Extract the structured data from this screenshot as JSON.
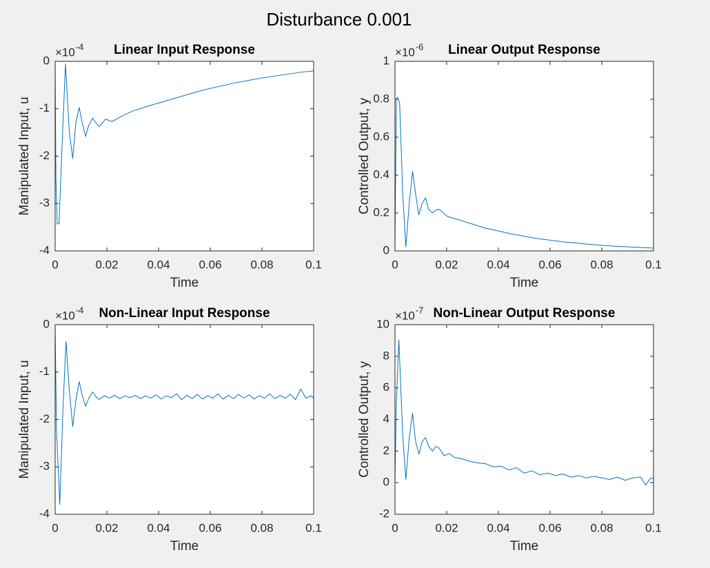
{
  "title": "Disturbance 0.001",
  "chart_data": [
    {
      "type": "line",
      "title": "Linear Input Response",
      "xlabel": "Time",
      "ylabel": "Manipulated Input, u",
      "y_multiplier": "×10",
      "y_exponent": "-4",
      "xlim": [
        0,
        0.1
      ],
      "xticks": [
        0,
        0.02,
        0.04,
        0.06,
        0.08,
        0.1
      ],
      "ylim": [
        -4,
        0
      ],
      "yticks": [
        -4,
        -3,
        -2,
        -1,
        0
      ],
      "color": "#0072bd",
      "x": [
        0,
        0.0003,
        0.0008,
        0.0015,
        0.0025,
        0.004,
        0.0055,
        0.0068,
        0.008,
        0.0093,
        0.0105,
        0.0118,
        0.013,
        0.0145,
        0.0158,
        0.017,
        0.0195,
        0.022,
        0.026,
        0.03,
        0.035,
        0.04,
        0.045,
        0.05,
        0.055,
        0.06,
        0.065,
        0.07,
        0.075,
        0.08,
        0.085,
        0.09,
        0.095,
        0.1
      ],
      "values": [
        0,
        -2.5,
        -3.43,
        -3.43,
        -2,
        -0.05,
        -1.5,
        -2.05,
        -1.3,
        -0.97,
        -1.3,
        -1.58,
        -1.35,
        -1.2,
        -1.3,
        -1.38,
        -1.22,
        -1.27,
        -1.15,
        -1.05,
        -0.96,
        -0.88,
        -0.8,
        -0.72,
        -0.64,
        -0.57,
        -0.51,
        -0.45,
        -0.4,
        -0.35,
        -0.31,
        -0.27,
        -0.23,
        -0.2
      ]
    },
    {
      "type": "line",
      "title": "Linear Output Response",
      "xlabel": "Time",
      "ylabel": "Controlled Output, y",
      "y_multiplier": "×10",
      "y_exponent": "-6",
      "xlim": [
        0,
        0.1
      ],
      "xticks": [
        0,
        0.02,
        0.04,
        0.06,
        0.08,
        0.1
      ],
      "ylim": [
        0,
        1
      ],
      "yticks": [
        0,
        0.2,
        0.4,
        0.6,
        0.8,
        1
      ],
      "color": "#0072bd",
      "x": [
        0,
        0.0005,
        0.001,
        0.0018,
        0.003,
        0.0042,
        0.0055,
        0.0068,
        0.008,
        0.0092,
        0.0105,
        0.0118,
        0.013,
        0.0145,
        0.0158,
        0.017,
        0.0205,
        0.022,
        0.028,
        0.035,
        0.045,
        0.055,
        0.065,
        0.075,
        0.085,
        0.1
      ],
      "values": [
        0,
        0.8,
        0.81,
        0.78,
        0.3,
        0.02,
        0.25,
        0.42,
        0.3,
        0.19,
        0.25,
        0.28,
        0.22,
        0.2,
        0.215,
        0.22,
        0.18,
        0.175,
        0.15,
        0.12,
        0.09,
        0.065,
        0.048,
        0.035,
        0.025,
        0.015
      ]
    },
    {
      "type": "line",
      "title": "Non-Linear Input Response",
      "xlabel": "Time",
      "ylabel": "Manipulated Input, u",
      "y_multiplier": "×10",
      "y_exponent": "-4",
      "xlim": [
        0,
        0.1
      ],
      "xticks": [
        0,
        0.02,
        0.04,
        0.06,
        0.08,
        0.1
      ],
      "ylim": [
        -4,
        0
      ],
      "yticks": [
        -4,
        -3,
        -2,
        -1,
        0
      ],
      "color": "#0072bd",
      "x": [
        0,
        0.0005,
        0.0018,
        0.003,
        0.0042,
        0.0055,
        0.0068,
        0.008,
        0.0093,
        0.0105,
        0.0118,
        0.013,
        0.0145,
        0.0158,
        0.017,
        0.019,
        0.021,
        0.023,
        0.025,
        0.027,
        0.029,
        0.031,
        0.033,
        0.035,
        0.037,
        0.039,
        0.041,
        0.043,
        0.045,
        0.047,
        0.049,
        0.051,
        0.053,
        0.055,
        0.057,
        0.059,
        0.061,
        0.063,
        0.065,
        0.067,
        0.069,
        0.071,
        0.073,
        0.075,
        0.077,
        0.079,
        0.081,
        0.083,
        0.085,
        0.087,
        0.089,
        0.091,
        0.093,
        0.095,
        0.097,
        0.099,
        0.1
      ],
      "values": [
        0,
        -2.2,
        -3.8,
        -1.8,
        -0.35,
        -1.4,
        -2.15,
        -1.6,
        -1.2,
        -1.5,
        -1.72,
        -1.55,
        -1.42,
        -1.52,
        -1.58,
        -1.5,
        -1.55,
        -1.49,
        -1.56,
        -1.5,
        -1.54,
        -1.49,
        -1.56,
        -1.5,
        -1.55,
        -1.48,
        -1.57,
        -1.5,
        -1.54,
        -1.46,
        -1.58,
        -1.49,
        -1.56,
        -1.47,
        -1.57,
        -1.5,
        -1.55,
        -1.46,
        -1.57,
        -1.49,
        -1.56,
        -1.47,
        -1.55,
        -1.48,
        -1.57,
        -1.5,
        -1.55,
        -1.46,
        -1.56,
        -1.49,
        -1.55,
        -1.47,
        -1.58,
        -1.36,
        -1.55,
        -1.5,
        -1.55
      ]
    },
    {
      "type": "line",
      "title": "Non-Linear Output Response",
      "xlabel": "Time",
      "ylabel": "Controlled Output, y",
      "y_multiplier": "×10",
      "y_exponent": "-7",
      "xlim": [
        0,
        0.1
      ],
      "xticks": [
        0,
        0.02,
        0.04,
        0.06,
        0.08,
        0.1
      ],
      "ylim": [
        -2,
        10
      ],
      "yticks": [
        -2,
        0,
        2,
        4,
        6,
        8,
        10
      ],
      "color": "#0072bd",
      "x": [
        0,
        0.0005,
        0.0015,
        0.003,
        0.0042,
        0.0055,
        0.0068,
        0.008,
        0.0093,
        0.0105,
        0.0118,
        0.013,
        0.0145,
        0.0158,
        0.017,
        0.019,
        0.021,
        0.023,
        0.026,
        0.029,
        0.032,
        0.035,
        0.038,
        0.041,
        0.044,
        0.047,
        0.05,
        0.053,
        0.056,
        0.059,
        0.062,
        0.065,
        0.068,
        0.071,
        0.074,
        0.077,
        0.08,
        0.083,
        0.086,
        0.089,
        0.092,
        0.095,
        0.097,
        0.099,
        0.1
      ],
      "values": [
        0,
        5,
        9.05,
        3,
        0.2,
        2.8,
        4.4,
        2.6,
        1.8,
        2.6,
        2.85,
        2.3,
        2.0,
        2.3,
        2.2,
        1.7,
        1.85,
        1.6,
        1.5,
        1.35,
        1.25,
        1.2,
        1.0,
        1.05,
        0.8,
        0.95,
        0.6,
        0.75,
        0.5,
        0.6,
        0.45,
        0.55,
        0.35,
        0.45,
        0.3,
        0.4,
        0.3,
        0.2,
        0.35,
        0.15,
        0.3,
        0.35,
        -0.15,
        0.3,
        0.25
      ]
    }
  ]
}
